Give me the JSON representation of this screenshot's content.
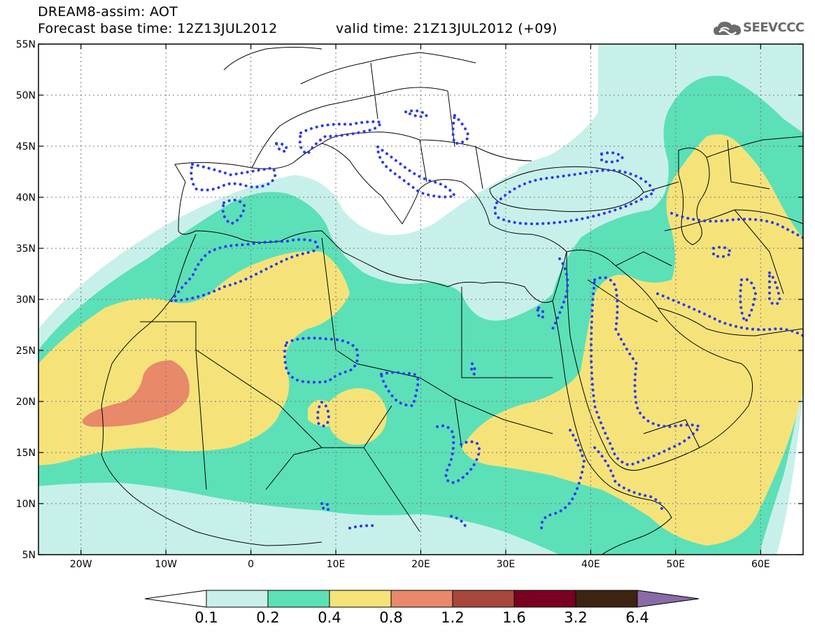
{
  "header": {
    "title": "DREAM8-assim: AOT",
    "base_time": "Forecast base time: 12Z13JUL2012",
    "valid_time": "valid time: 21Z13JUL2012 (+09)"
  },
  "logo": {
    "text": "SEEVCCC",
    "icon": "cloud-icon"
  },
  "map": {
    "lat_labels": [
      "55N",
      "50N",
      "45N",
      "40N",
      "35N",
      "30N",
      "25N",
      "20N",
      "15N",
      "10N",
      "5N"
    ],
    "lon_labels": [
      "20W",
      "10W",
      "0",
      "10E",
      "20E",
      "30E",
      "40E",
      "50E",
      "60E"
    ],
    "lat_range": [
      5,
      55
    ],
    "lon_range": [
      -25,
      65
    ],
    "field": "AOT",
    "dotted_contours": "blue-dotted"
  },
  "colorbar": {
    "labels": [
      "0.1",
      "0.2",
      "0.4",
      "0.8",
      "1.2",
      "1.6",
      "3.2",
      "6.4"
    ],
    "colors": [
      "#ffffff",
      "#c8f0ea",
      "#5ce0b8",
      "#f5e37a",
      "#e8896a",
      "#a8473a",
      "#7a0020",
      "#3d2410",
      "#8a6aa8"
    ]
  }
}
